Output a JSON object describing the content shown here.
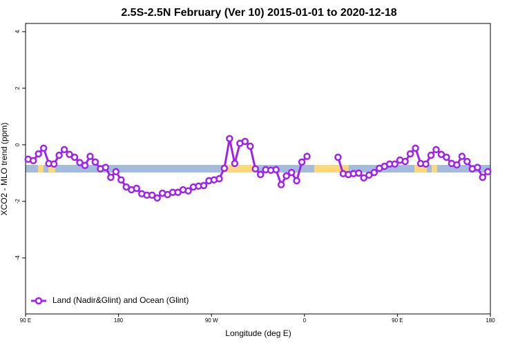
{
  "chart_data": {
    "type": "line",
    "title": "2.5S-2.5N February (Ver 10)   2015-01-01 to 2020-12-18",
    "x_label": "Longitude (deg E)",
    "y_label": "XCO2 - MLO trend (ppm)",
    "xlim": [
      90,
      540
    ],
    "ylim": [
      -5.98,
      4.29
    ],
    "xticks": [
      {
        "value": 90,
        "label": "90 E"
      },
      180,
      {
        "value": 270,
        "label": "90 W"
      },
      {
        "value": 360,
        "label": "0"
      },
      {
        "value": 450,
        "label": "90 E"
      },
      {
        "value": 540,
        "label": "180"
      }
    ],
    "yticks": [
      4,
      2,
      0,
      -2,
      -4
    ],
    "legend": "bottom-left",
    "x": [
      92.5,
      97.5,
      102.5,
      107.5,
      112.5,
      117.5,
      122.5,
      127.5,
      132.5,
      137.5,
      142.5,
      147.5,
      152.5,
      157.5,
      162.5,
      167.5,
      172.5,
      177.5,
      182.5,
      187.5,
      192.5,
      197.5,
      202.5,
      207.5,
      212.5,
      217.5,
      222.5,
      227.5,
      232.5,
      237.5,
      242.5,
      247.5,
      252.5,
      257.5,
      262.5,
      267.5,
      272.5,
      277.5,
      282.5,
      287.5,
      292.5,
      297.5,
      302.5,
      307.5,
      312.5,
      317.5,
      322.5,
      327.5,
      332.5,
      337.5,
      342.5,
      347.5,
      352.5,
      357.5,
      362.5,
      367.5,
      372.5,
      377.5,
      382.5,
      387.5,
      392.5,
      397.5,
      402.5,
      407.5,
      412.5,
      417.5,
      422.5,
      427.5,
      432.5,
      437.5,
      442.5,
      447.5,
      452.5,
      457.5,
      462.5,
      467.5,
      472.5,
      477.5,
      482.5,
      487.5,
      492.5,
      497.5,
      502.5,
      507.5,
      512.5,
      517.5,
      522.5,
      527.5,
      532.5,
      537.5
    ],
    "series": [
      {
        "name": "Land (Nadir&Glint) and Ocean (Glint)",
        "color": "#a020f0",
        "values": [
          -0.51,
          -0.56,
          -0.32,
          -0.12,
          -0.66,
          -0.68,
          -0.37,
          -0.17,
          -0.34,
          -0.44,
          -0.63,
          -0.73,
          -0.41,
          -0.61,
          -0.85,
          -0.8,
          -1.15,
          -0.95,
          -1.24,
          -1.49,
          -1.59,
          -1.54,
          -1.73,
          -1.78,
          -1.78,
          -1.88,
          -1.71,
          -1.76,
          -1.68,
          -1.68,
          -1.59,
          -1.63,
          -1.49,
          -1.46,
          -1.44,
          -1.27,
          -1.24,
          -1.2,
          -0.83,
          0.22,
          -0.66,
          0.05,
          0.12,
          -0.05,
          -0.85,
          -1.05,
          -0.88,
          -0.9,
          -0.88,
          -1.41,
          -1.1,
          -0.98,
          -1.27,
          -0.61,
          -0.41,
          null,
          null,
          null,
          null,
          null,
          -0.44,
          -1.02,
          -1.05,
          -1.02,
          -1.0,
          -1.17,
          -1.07,
          -0.98,
          -0.83,
          -0.76,
          -0.68,
          -0.68,
          -0.54,
          -0.59,
          -0.32,
          -0.12,
          -0.66,
          -0.68,
          -0.37,
          -0.17,
          -0.34,
          -0.44,
          -0.66,
          -0.71,
          -0.41,
          -0.59,
          -0.85,
          -0.8,
          -1.15,
          -0.95
        ]
      }
    ]
  }
}
